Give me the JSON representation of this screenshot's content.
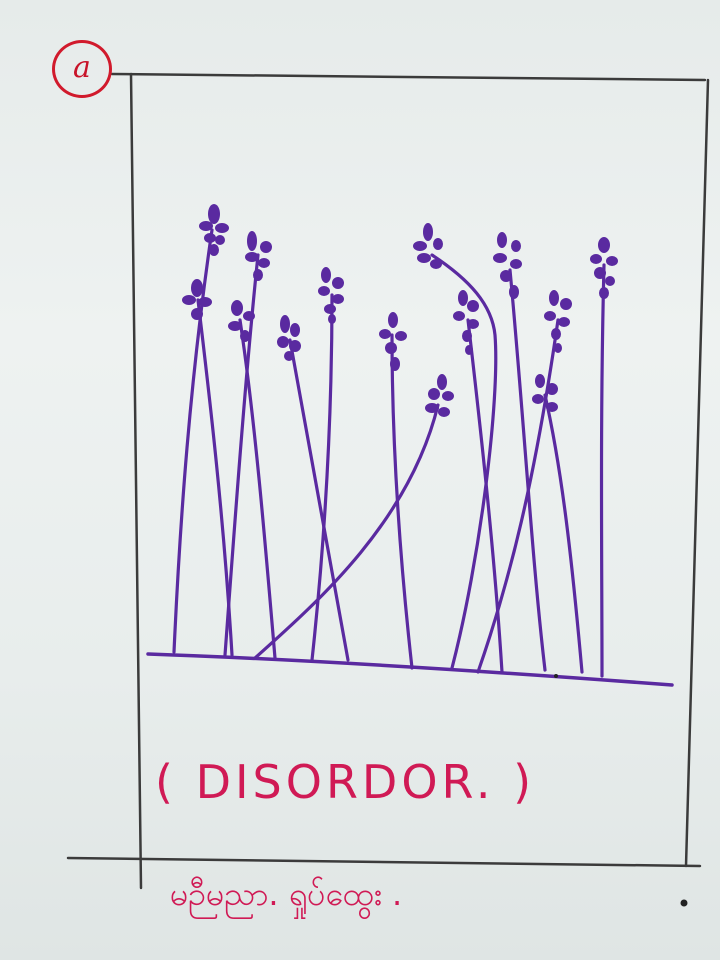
{
  "sketch": {
    "label": "a",
    "caption": "( DISORDOR. )",
    "footer": "မဉီမညာ. ရှုပ်ထွေး .",
    "colors": {
      "board": "#e9eeec",
      "frame": "#3b3b3b",
      "flowers": "#5a2aa0",
      "caption": "#d01a55",
      "label": "#c8142a"
    },
    "flower_count": 13,
    "icons": [
      "circled-label-icon",
      "flower-stems-icon",
      "ground-line-icon"
    ]
  }
}
